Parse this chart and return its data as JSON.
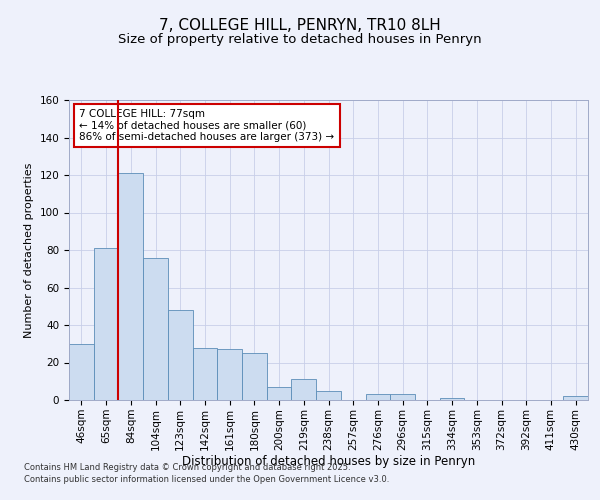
{
  "title": "7, COLLEGE HILL, PENRYN, TR10 8LH",
  "subtitle": "Size of property relative to detached houses in Penryn",
  "xlabel": "Distribution of detached houses by size in Penryn",
  "ylabel": "Number of detached properties",
  "categories": [
    "46sqm",
    "65sqm",
    "84sqm",
    "104sqm",
    "123sqm",
    "142sqm",
    "161sqm",
    "180sqm",
    "200sqm",
    "219sqm",
    "238sqm",
    "257sqm",
    "276sqm",
    "296sqm",
    "315sqm",
    "334sqm",
    "353sqm",
    "372sqm",
    "392sqm",
    "411sqm",
    "430sqm"
  ],
  "values": [
    30,
    81,
    121,
    76,
    48,
    28,
    27,
    25,
    7,
    11,
    5,
    0,
    3,
    3,
    0,
    1,
    0,
    0,
    0,
    0,
    2
  ],
  "bar_color": "#ccdcf0",
  "bar_edge_color": "#5b8db8",
  "ylim": [
    0,
    160
  ],
  "yticks": [
    0,
    20,
    40,
    60,
    80,
    100,
    120,
    140,
    160
  ],
  "red_line_x": 1.5,
  "annotation_line1": "7 COLLEGE HILL: 77sqm",
  "annotation_line2": "← 14% of detached houses are smaller (60)",
  "annotation_line3": "86% of semi-detached houses are larger (373) →",
  "annotation_box_color": "#ffffff",
  "annotation_box_edge": "#cc0000",
  "footer_line1": "Contains HM Land Registry data © Crown copyright and database right 2025.",
  "footer_line2": "Contains public sector information licensed under the Open Government Licence v3.0.",
  "background_color": "#eef1fb",
  "grid_color": "#c8cfe8",
  "title_fontsize": 11,
  "subtitle_fontsize": 9.5,
  "axis_label_fontsize": 8.5,
  "tick_fontsize": 7.5,
  "ylabel_fontsize": 8
}
